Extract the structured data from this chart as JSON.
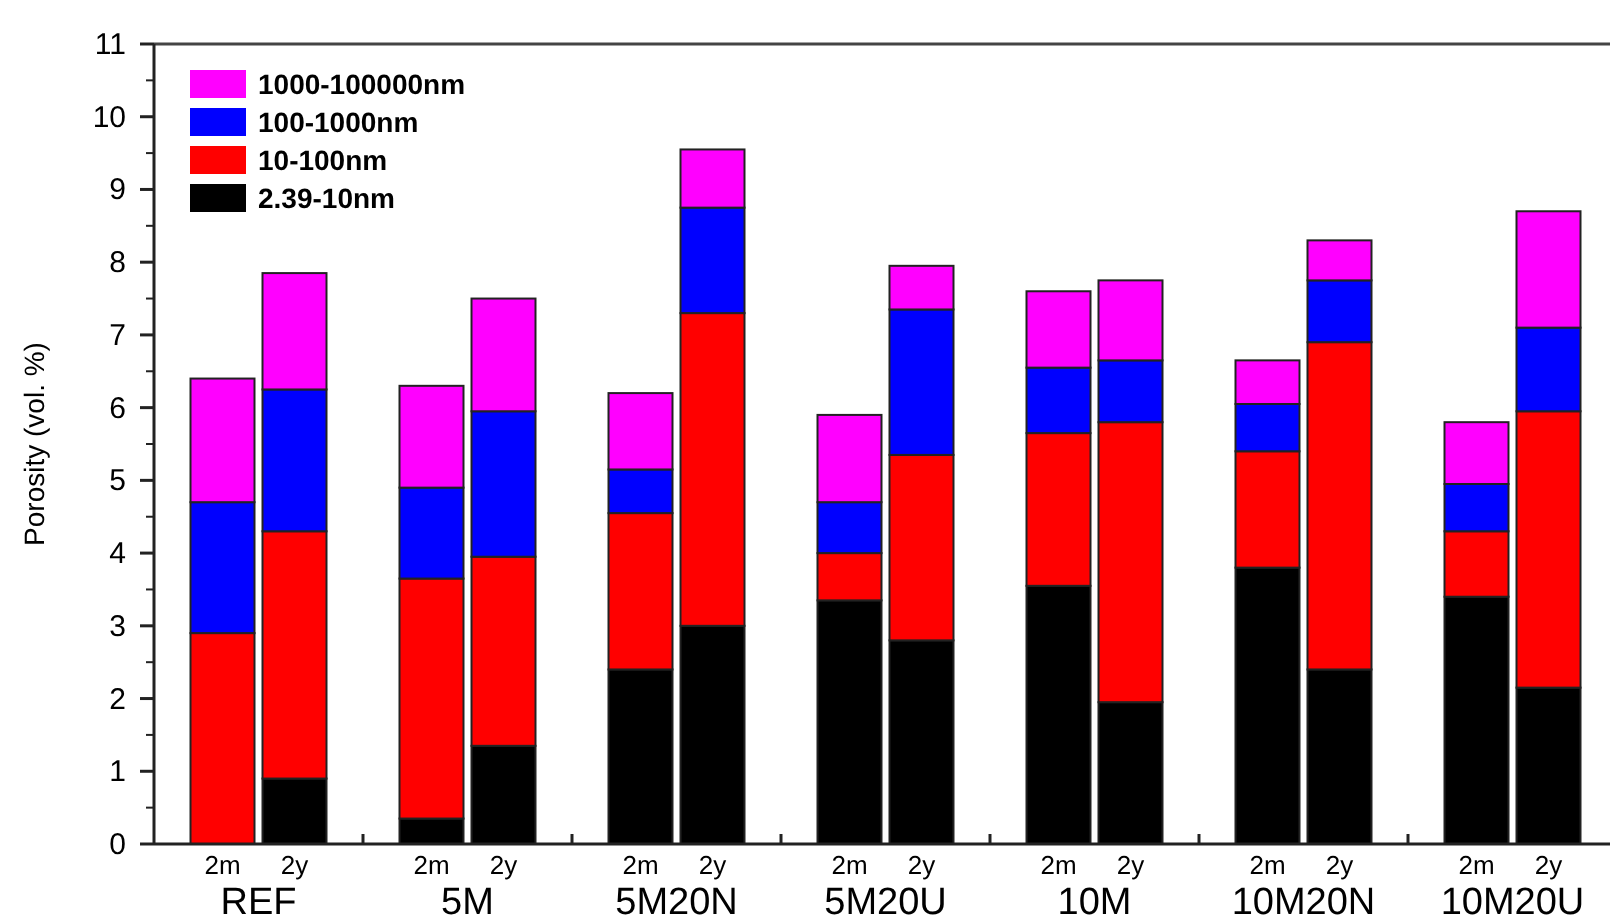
{
  "chart_data": {
    "type": "bar",
    "stacked": true,
    "ylabel": "Porosity (vol. %)",
    "categories": [
      "2m",
      "2y",
      "2m",
      "2y",
      "2m",
      "2y",
      "2m",
      "2y",
      "2m",
      "2y",
      "2m",
      "2y",
      "2m",
      "2y"
    ],
    "annotations": [
      "REF",
      "5M",
      "5M20N",
      "5M20U",
      "10M",
      "10M20N",
      "10M20U"
    ],
    "series": [
      {
        "name": "2.39-10nm",
        "color": "#000000",
        "values": [
          0,
          0.9,
          0.35,
          1.35,
          2.4,
          3.0,
          3.35,
          2.8,
          3.55,
          1.95,
          3.8,
          2.4,
          3.4,
          2.15
        ]
      },
      {
        "name": "10-100nm",
        "color": "#ff0000",
        "values": [
          2.9,
          3.4,
          3.3,
          2.6,
          2.15,
          4.3,
          0.65,
          2.55,
          2.1,
          3.85,
          1.6,
          4.5,
          0.9,
          3.8
        ]
      },
      {
        "name": "100-1000nm",
        "color": "#0000ff",
        "values": [
          1.8,
          1.95,
          1.25,
          2.0,
          0.6,
          1.45,
          0.7,
          2.0,
          0.9,
          0.85,
          0.65,
          0.85,
          0.65,
          1.15
        ]
      },
      {
        "name": "1000-100000nm",
        "color": "#ff00ff",
        "values": [
          1.7,
          1.6,
          1.4,
          1.55,
          1.05,
          0.8,
          1.2,
          0.6,
          1.05,
          1.1,
          0.6,
          0.55,
          0.85,
          1.6
        ]
      }
    ],
    "ylim": [
      0,
      11
    ],
    "yticks": [
      0,
      1,
      2,
      3,
      4,
      5,
      6,
      7,
      8,
      9,
      10,
      11
    ],
    "legend": "top left"
  }
}
